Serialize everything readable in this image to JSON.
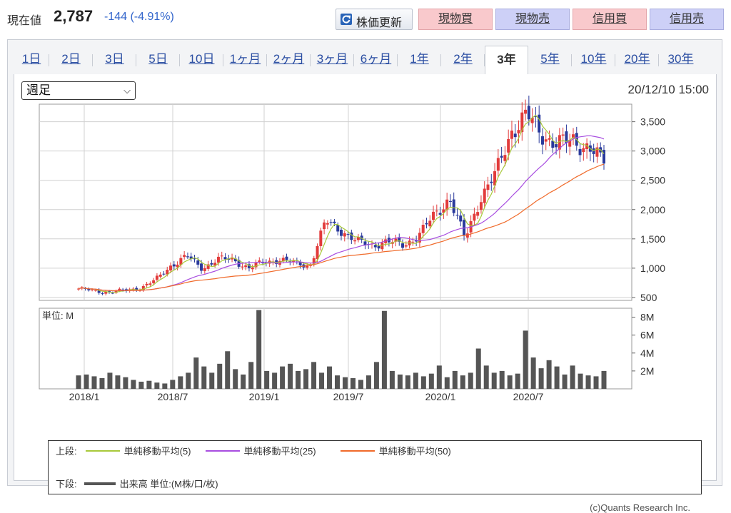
{
  "header": {
    "price_label": "現在値",
    "price_value": "2,787",
    "change": "-144 (-4.91%)",
    "refresh_label": "株価更新",
    "buttons": [
      {
        "label": "現物買",
        "kind": "buy"
      },
      {
        "label": "現物売",
        "kind": "sell"
      },
      {
        "label": "信用買",
        "kind": "buy"
      },
      {
        "label": "信用売",
        "kind": "sell"
      }
    ]
  },
  "tabs": [
    "1日",
    "2日",
    "3日",
    "5日",
    "10日",
    "1ヶ月",
    "2ヶ月",
    "3ヶ月",
    "6ヶ月",
    "1年",
    "2年",
    "3年",
    "5年",
    "10年",
    "20年",
    "30年"
  ],
  "active_tab": "3年",
  "period_select": "週足",
  "timestamp": "20/12/10 15:00",
  "chart_data": [
    {
      "type": "candlestick",
      "x_ticks": [
        "2018/1",
        "2018/7",
        "2019/1",
        "2019/7",
        "2020/1",
        "2020/7"
      ],
      "y_ticks": [
        "3,500",
        "3,000",
        "2,500",
        "2,000",
        "1,500",
        "1,000",
        "500"
      ],
      "ylim": [
        450,
        3800
      ],
      "grid": true,
      "close_series_approx": [
        {
          "x": "2017/12",
          "y": 650
        },
        {
          "x": "2018/1",
          "y": 610
        },
        {
          "x": "2018/3",
          "y": 590
        },
        {
          "x": "2018/5",
          "y": 620
        },
        {
          "x": "2018/6",
          "y": 660
        },
        {
          "x": "2018/7",
          "y": 800
        },
        {
          "x": "2018/8",
          "y": 1050
        },
        {
          "x": "2018/9",
          "y": 1200
        },
        {
          "x": "2018/10",
          "y": 1000
        },
        {
          "x": "2018/11",
          "y": 1150
        },
        {
          "x": "2018/12",
          "y": 1150
        },
        {
          "x": "2019/1",
          "y": 1000
        },
        {
          "x": "2019/2",
          "y": 1100
        },
        {
          "x": "2019/3",
          "y": 1150
        },
        {
          "x": "2019/4",
          "y": 1080
        },
        {
          "x": "2019/5",
          "y": 1050
        },
        {
          "x": "2019/6",
          "y": 1800
        },
        {
          "x": "2019/7",
          "y": 1650
        },
        {
          "x": "2019/8",
          "y": 1450
        },
        {
          "x": "2019/9",
          "y": 1400
        },
        {
          "x": "2019/10",
          "y": 1450
        },
        {
          "x": "2019/11",
          "y": 1400
        },
        {
          "x": "2019/12",
          "y": 1550
        },
        {
          "x": "2020/1",
          "y": 1900
        },
        {
          "x": "2020/2",
          "y": 2200
        },
        {
          "x": "2020/3",
          "y": 1500
        },
        {
          "x": "2020/4",
          "y": 2200
        },
        {
          "x": "2020/5",
          "y": 2600
        },
        {
          "x": "2020/6",
          "y": 3350
        },
        {
          "x": "2020/7",
          "y": 3600
        },
        {
          "x": "2020/8",
          "y": 3300
        },
        {
          "x": "2020/9",
          "y": 3100
        },
        {
          "x": "2020/10",
          "y": 3200
        },
        {
          "x": "2020/11",
          "y": 3050
        },
        {
          "x": "2020/12",
          "y": 2787
        }
      ],
      "series": [
        {
          "name": "単純移動平均(5)",
          "color": "#a8c93a"
        },
        {
          "name": "単純移動平均(25)",
          "color": "#a84de0"
        },
        {
          "name": "単純移動平均(50)",
          "color": "#f06a2a"
        }
      ]
    },
    {
      "type": "bar",
      "title": "単位: M",
      "y_ticks": [
        "8M",
        "6M",
        "4M",
        "2M"
      ],
      "ylim": [
        0,
        9
      ],
      "volume_approx": [
        1.5,
        1.6,
        1.4,
        1.2,
        1.8,
        1.5,
        1.3,
        1.0,
        0.8,
        0.9,
        0.7,
        0.6,
        1.0,
        1.4,
        1.8,
        3.5,
        2.5,
        1.8,
        2.8,
        4.2,
        2.2,
        1.6,
        3.0,
        8.8,
        2.0,
        1.8,
        2.5,
        2.8,
        2.0,
        2.2,
        3.0,
        1.8,
        2.5,
        1.5,
        1.3,
        1.2,
        1.0,
        1.5,
        3.0,
        8.7,
        2.0,
        1.6,
        1.5,
        1.8,
        1.4,
        1.7,
        2.6,
        1.3,
        2.0,
        1.5,
        1.8,
        4.5,
        2.6,
        1.8,
        2.0,
        1.5,
        1.7,
        6.5,
        3.5,
        2.3,
        3.2,
        2.5,
        1.6,
        2.6,
        1.7,
        1.5,
        1.4,
        2.0
      ]
    }
  ],
  "legend": {
    "upper_label": "上段:",
    "lower_label": "下段:",
    "volume_label": "出来高 単位:(M株/口/枚)"
  },
  "credit": "(c)Quants Research Inc."
}
